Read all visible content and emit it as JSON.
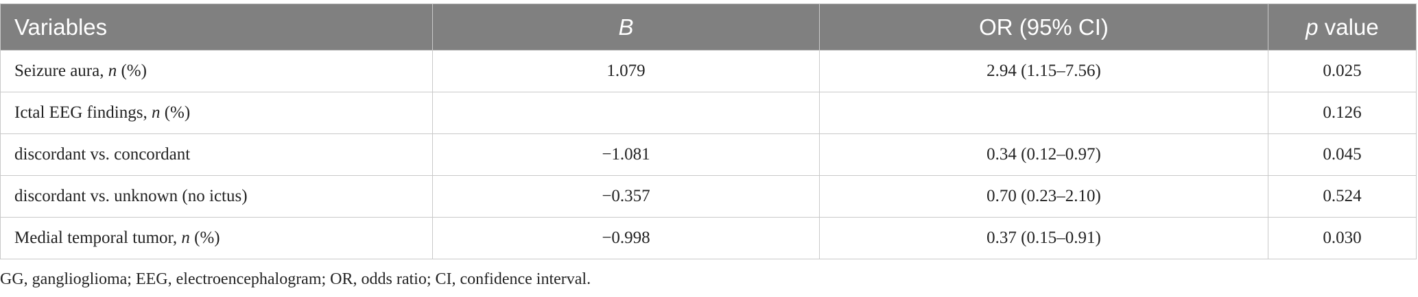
{
  "table": {
    "header": [
      "Variables",
      "B",
      "OR (95% CI)",
      [
        "p",
        " value"
      ]
    ],
    "rows": [
      {
        "label": [
          "Seizure aura, ",
          "n",
          " (%)"
        ],
        "b": "1.079",
        "or": "2.94 (1.15–7.56)",
        "p": "0.025"
      },
      {
        "label": [
          "Ictal EEG findings, ",
          "n",
          " (%)"
        ],
        "p": "0.126"
      },
      {
        "label": [
          "discordant vs. concordant"
        ],
        "b": "−1.081",
        "or": "0.34 (0.12–0.97)",
        "p": "0.045"
      },
      {
        "label": [
          "discordant vs. unknown (no ictus)"
        ],
        "b": "−0.357",
        "or": "0.70 (0.23–2.10)",
        "p": "0.524"
      },
      {
        "label": [
          "Medial temporal tumor, ",
          "n",
          " (%)"
        ],
        "b": "−0.998",
        "or": "0.37 (0.15–0.91)",
        "p": "0.030"
      }
    ],
    "footnote": "GG, ganglioglioma; EEG, electroencephalogram; OR, odds ratio; CI, confidence interval."
  }
}
